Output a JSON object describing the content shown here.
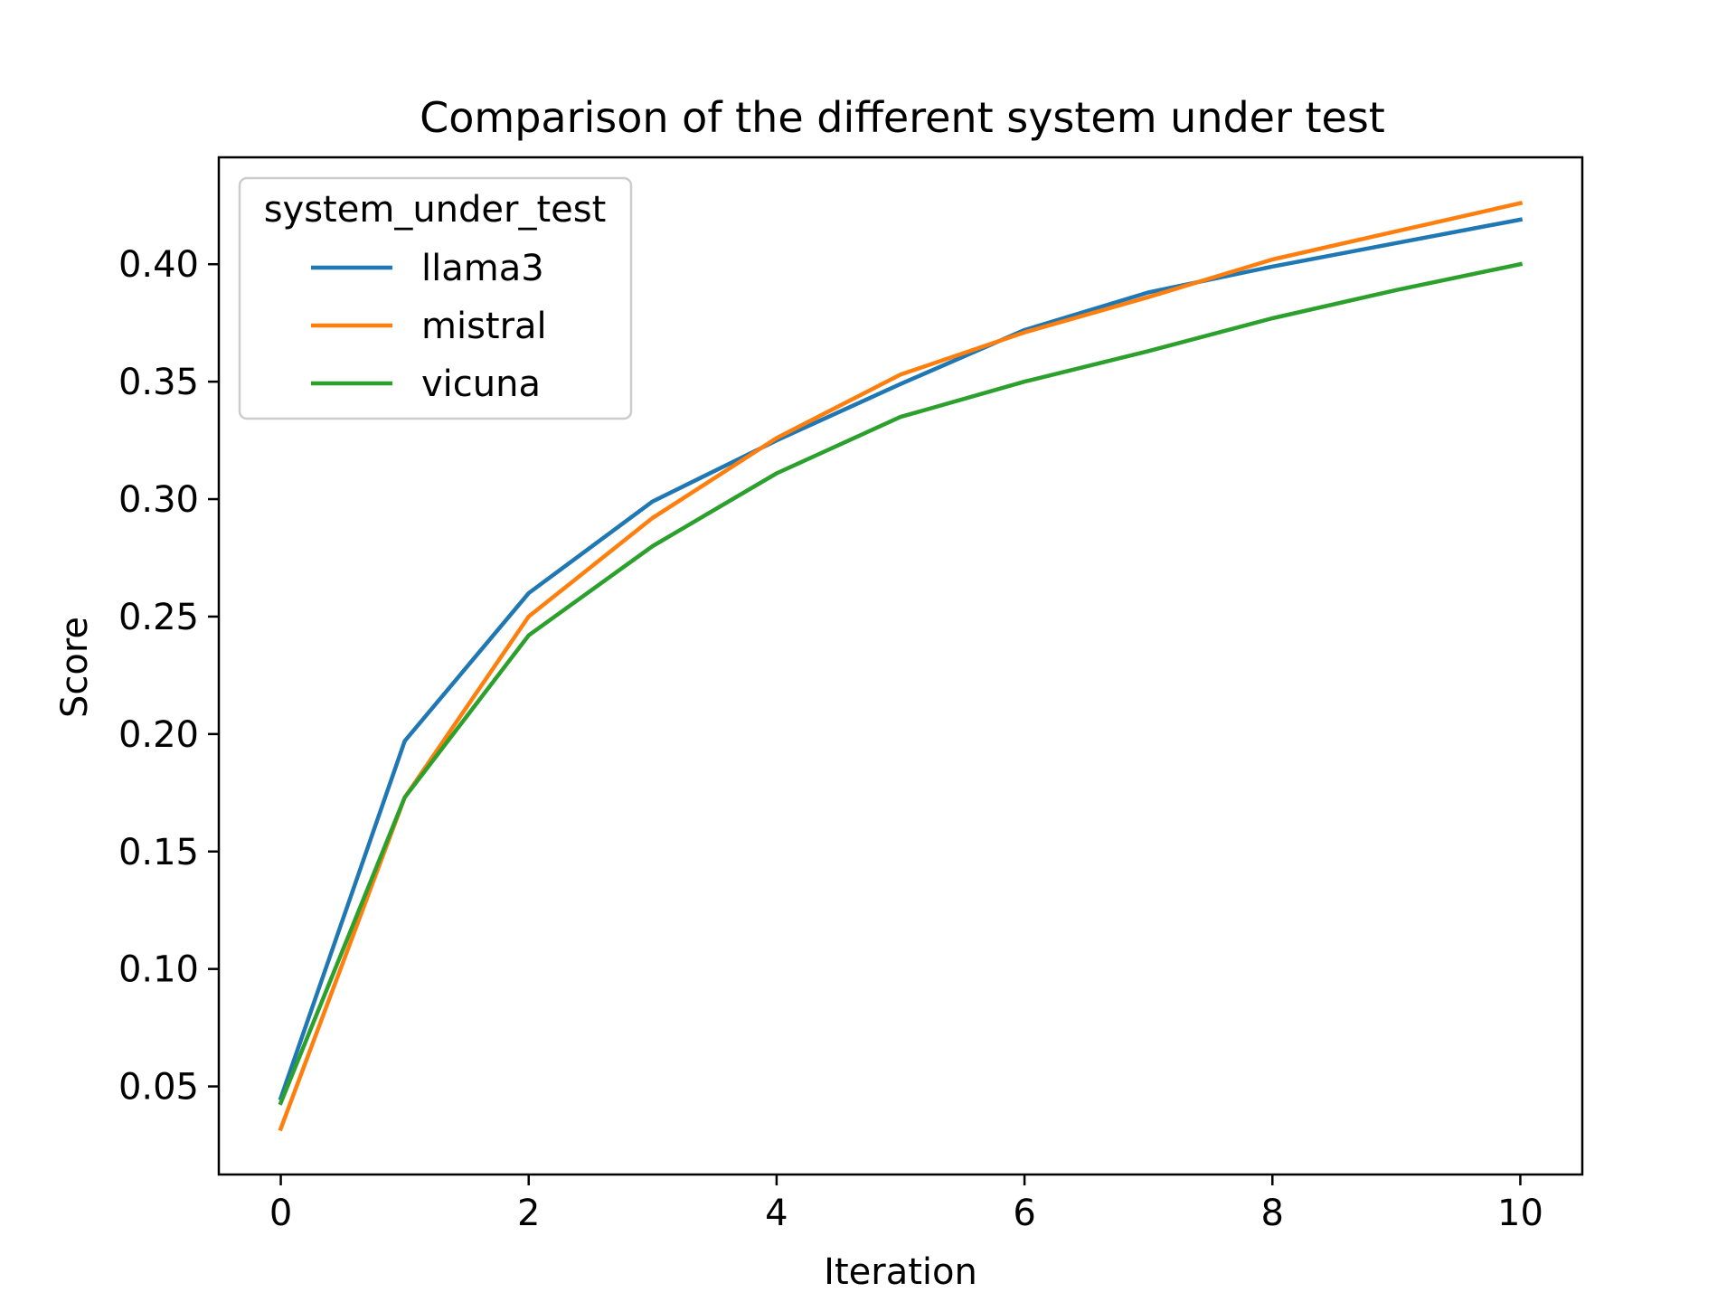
{
  "chart_data": {
    "type": "line",
    "title": "Comparison of the different system under test",
    "xlabel": "Iteration",
    "ylabel": "Score",
    "xlim": [
      -0.5,
      10.5
    ],
    "ylim": [
      0.0125,
      0.4455
    ],
    "x": [
      0,
      1,
      2,
      3,
      4,
      5,
      6,
      7,
      8,
      9,
      10
    ],
    "xticks": [
      0,
      2,
      4,
      6,
      8,
      10
    ],
    "xtick_labels": [
      "0",
      "2",
      "4",
      "6",
      "8",
      "10"
    ],
    "yticks": [
      0.05,
      0.1,
      0.15,
      0.2,
      0.25,
      0.3,
      0.35,
      0.4
    ],
    "ytick_labels": [
      "0.05",
      "0.10",
      "0.15",
      "0.20",
      "0.25",
      "0.30",
      "0.35",
      "0.40"
    ],
    "grid": false,
    "legend": {
      "title": "system_under_test",
      "placement": "top-left"
    },
    "series": [
      {
        "name": "llama3",
        "color": "#1f77b4",
        "values": [
          0.045,
          0.197,
          0.26,
          0.299,
          0.325,
          0.349,
          0.372,
          0.388,
          0.399,
          0.409,
          0.419
        ]
      },
      {
        "name": "mistral",
        "color": "#ff7f0e",
        "values": [
          0.032,
          0.173,
          0.25,
          0.292,
          0.326,
          0.353,
          0.371,
          0.386,
          0.402,
          0.414,
          0.426
        ]
      },
      {
        "name": "vicuna",
        "color": "#2ca02c",
        "values": [
          0.043,
          0.173,
          0.242,
          0.28,
          0.311,
          0.335,
          0.35,
          0.363,
          0.377,
          0.389,
          0.4
        ]
      }
    ]
  }
}
